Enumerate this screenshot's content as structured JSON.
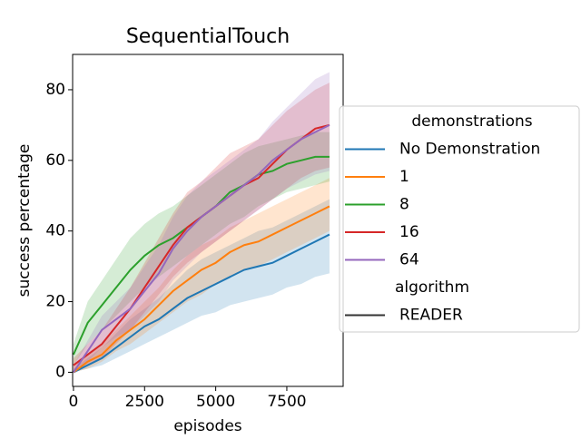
{
  "chart_data": {
    "type": "line",
    "title": "SequentialTouch",
    "xlabel": "episodes",
    "ylabel": "success percentage",
    "x": [
      0,
      500,
      1000,
      1500,
      2000,
      2500,
      3000,
      3500,
      4000,
      4500,
      5000,
      5500,
      6000,
      6500,
      7000,
      7500,
      8000,
      8500,
      9000
    ],
    "xlim": [
      -30,
      9480
    ],
    "ylim": [
      -4,
      90
    ],
    "xticks": [
      0,
      2500,
      5000,
      7500
    ],
    "yticks": [
      0,
      20,
      40,
      60,
      80
    ],
    "grid": false,
    "legend": "right",
    "legend_title": "demonstrations",
    "series": [
      {
        "name": "No Demonstration",
        "color": "#1f77b4",
        "values": [
          0,
          2,
          4,
          7,
          10,
          13,
          15,
          18,
          21,
          23,
          25,
          27,
          29,
          30,
          31,
          33,
          35,
          37,
          39
        ],
        "lower": [
          0,
          1,
          2,
          4,
          6,
          8,
          10,
          12,
          14,
          16,
          17,
          19,
          20,
          21,
          22,
          24,
          25,
          27,
          28
        ],
        "upper": [
          1,
          4,
          7,
          11,
          15,
          18,
          21,
          25,
          29,
          32,
          34,
          36,
          38,
          40,
          41,
          43,
          45,
          47,
          49
        ]
      },
      {
        "name": "1",
        "color": "#ff7f0e",
        "values": [
          0,
          3,
          5,
          9,
          12,
          15,
          19,
          23,
          26,
          29,
          31,
          34,
          36,
          37,
          39,
          41,
          43,
          45,
          47
        ],
        "lower": [
          0,
          1,
          3,
          6,
          8,
          11,
          14,
          17,
          20,
          22,
          25,
          27,
          29,
          30,
          32,
          34,
          36,
          38,
          40
        ],
        "upper": [
          2,
          5,
          8,
          12,
          16,
          20,
          24,
          29,
          33,
          36,
          38,
          41,
          43,
          45,
          47,
          49,
          51,
          53,
          55
        ]
      },
      {
        "name": "8",
        "color": "#2ca02c",
        "values": [
          5,
          14,
          19,
          24,
          29,
          33,
          36,
          38,
          41,
          44,
          47,
          51,
          53,
          56,
          57,
          59,
          60,
          61,
          61
        ],
        "lower": [
          2,
          8,
          12,
          16,
          20,
          24,
          27,
          30,
          33,
          36,
          39,
          42,
          44,
          47,
          49,
          51,
          52,
          53,
          54
        ],
        "upper": [
          8,
          20,
          26,
          32,
          38,
          42,
          45,
          47,
          50,
          53,
          56,
          59,
          62,
          64,
          65,
          66,
          67,
          68,
          68
        ]
      },
      {
        "name": "16",
        "color": "#d62728",
        "values": [
          2,
          5,
          8,
          13,
          18,
          24,
          30,
          36,
          41,
          44,
          47,
          50,
          53,
          55,
          59,
          63,
          66,
          69,
          70
        ],
        "lower": [
          0,
          2,
          4,
          8,
          12,
          17,
          22,
          27,
          31,
          34,
          37,
          40,
          43,
          46,
          49,
          52,
          55,
          57,
          58
        ],
        "upper": [
          4,
          8,
          12,
          18,
          24,
          31,
          38,
          45,
          51,
          54,
          58,
          62,
          64,
          66,
          70,
          74,
          77,
          80,
          82
        ]
      },
      {
        "name": "64",
        "color": "#9467bd",
        "values": [
          0,
          6,
          12,
          15,
          18,
          23,
          28,
          35,
          40,
          44,
          47,
          50,
          53,
          56,
          60,
          63,
          66,
          68,
          70
        ],
        "lower": [
          0,
          3,
          7,
          10,
          12,
          16,
          20,
          26,
          30,
          34,
          37,
          40,
          43,
          46,
          49,
          52,
          54,
          56,
          57
        ],
        "upper": [
          2,
          9,
          16,
          20,
          24,
          30,
          36,
          44,
          50,
          54,
          57,
          60,
          63,
          66,
          71,
          75,
          79,
          83,
          85
        ]
      }
    ],
    "style_title": "algorithm",
    "style_entries": [
      {
        "name": "READER",
        "color": "#333333"
      }
    ]
  }
}
